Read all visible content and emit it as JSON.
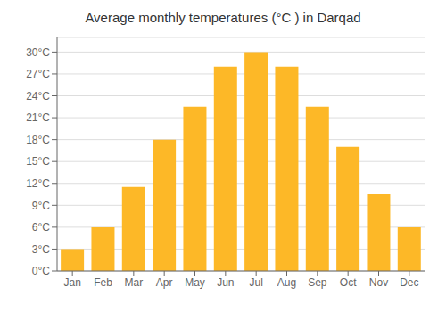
{
  "chart_data": {
    "type": "bar",
    "title": "Average monthly temperatures (°C ) in Darqad",
    "categories": [
      "Jan",
      "Feb",
      "Mar",
      "Apr",
      "May",
      "Jun",
      "Jul",
      "Aug",
      "Sep",
      "Oct",
      "Nov",
      "Dec"
    ],
    "values": [
      3,
      6,
      11.5,
      18,
      22.5,
      28,
      30,
      28,
      22.5,
      17,
      10.5,
      6
    ],
    "color": "#FDB827",
    "ylim": [
      0,
      32
    ],
    "yticks": [
      {
        "value": 0,
        "label": "0°C"
      },
      {
        "value": 3,
        "label": "3°C"
      },
      {
        "value": 6,
        "label": "6°C"
      },
      {
        "value": 9,
        "label": "9°C"
      },
      {
        "value": 12,
        "label": "12°C"
      },
      {
        "value": 15,
        "label": "15°C"
      },
      {
        "value": 18,
        "label": "18°C"
      },
      {
        "value": 21,
        "label": "21°C"
      },
      {
        "value": 24,
        "label": "24°C"
      },
      {
        "value": 27,
        "label": "27°C"
      },
      {
        "value": 30,
        "label": "30°C"
      }
    ],
    "grid": true
  }
}
